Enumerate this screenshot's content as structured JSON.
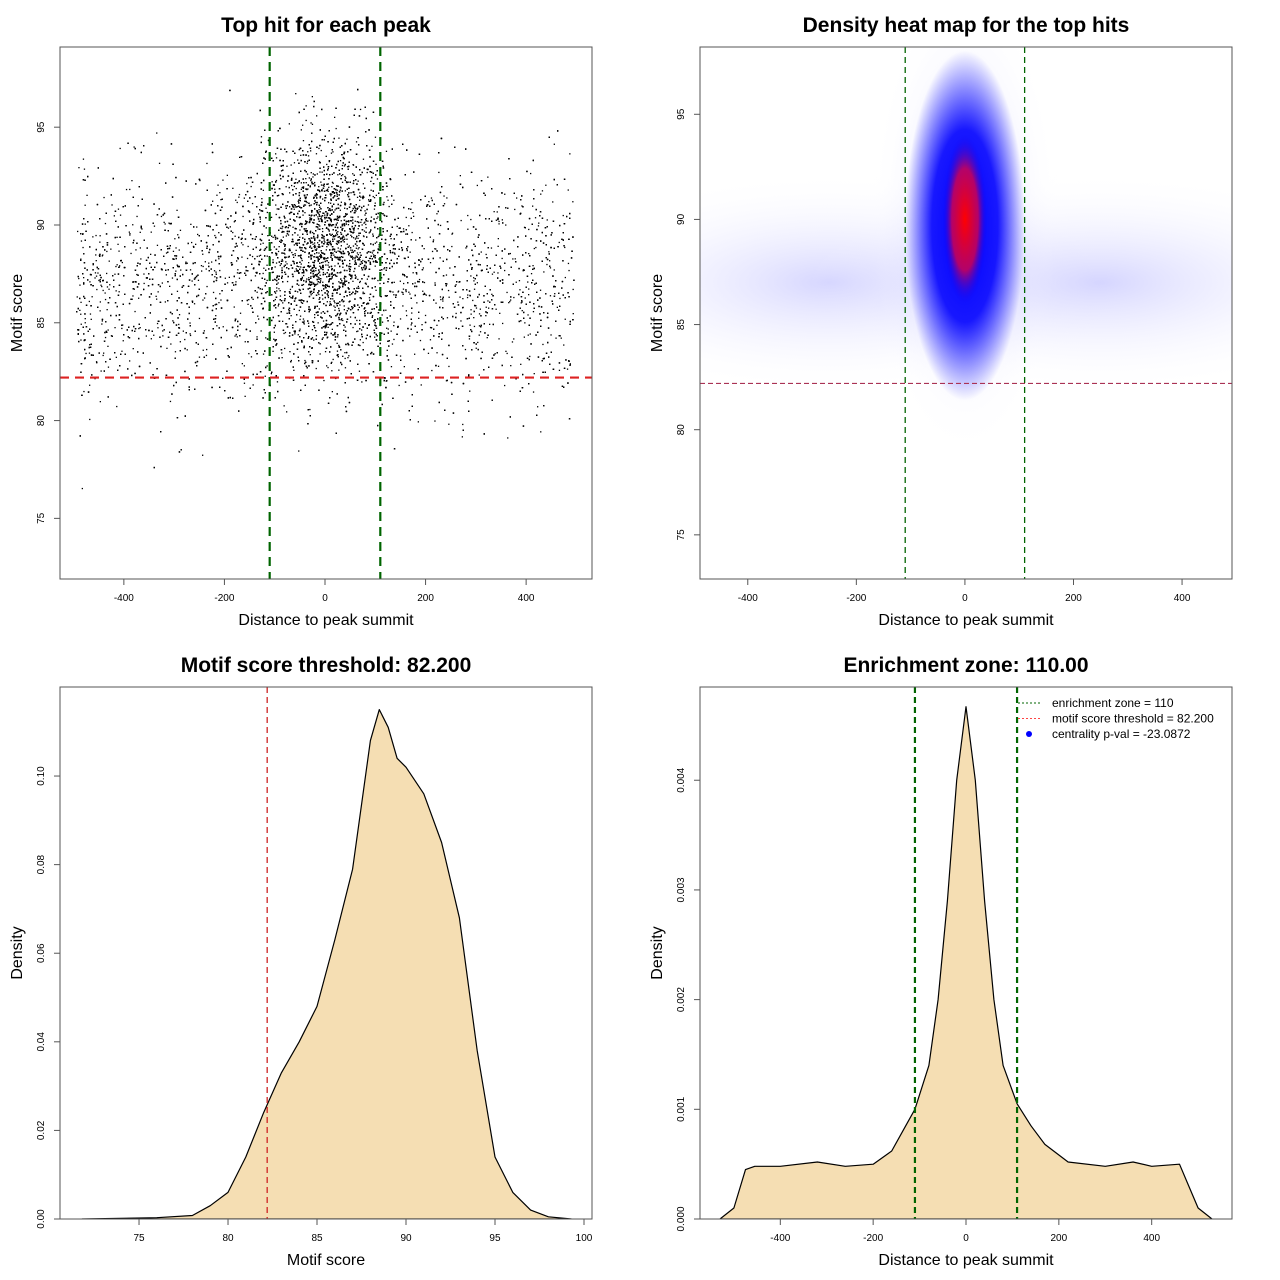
{
  "chart_data": [
    {
      "type": "scatter",
      "title": "Top hit for each peak",
      "xlabel": "Distance to peak summit",
      "ylabel": "Motif score",
      "xlim": [
        -527,
        531
      ],
      "ylim": [
        71.9,
        99.1
      ],
      "xticks": [
        "-400",
        "-200",
        "0",
        "200",
        "400"
      ],
      "yticks": [
        "75",
        "80",
        "85",
        "90",
        "95"
      ],
      "vlines": [
        -110,
        110
      ],
      "hline": 82.2,
      "vline_color": "#006400",
      "hline_color": "#dd2222",
      "point_color": "#000000"
    },
    {
      "type": "heatmap",
      "title": "Density heat map for the top hits",
      "xlabel": "Distance to peak summit",
      "ylabel": "Motif score",
      "xlim": [
        -488,
        492
      ],
      "ylim": [
        72.9,
        98.2
      ],
      "xticks": [
        "-400",
        "-200",
        "0",
        "200",
        "400"
      ],
      "yticks": [
        "75",
        "80",
        "85",
        "90",
        "95"
      ],
      "vlines": [
        -110,
        110
      ],
      "hline": 82.2,
      "peak": {
        "x": 0,
        "y": 90
      },
      "colors": [
        "#ffffff",
        "#0000ff",
        "#ff0000"
      ]
    },
    {
      "type": "area",
      "title": "Motif score threshold: 82.200",
      "xlabel": "Motif score",
      "ylabel": "Density",
      "xlim": [
        70.56,
        100.45
      ],
      "ylim": [
        0,
        0.1201
      ],
      "xticks": [
        "75",
        "80",
        "85",
        "90",
        "95",
        "100"
      ],
      "yticks": [
        "0.00",
        "0.02",
        "0.04",
        "0.06",
        "0.08",
        "0.10"
      ],
      "vline": 82.2,
      "vline_color": "#cc2222",
      "fill": "#f5deb3",
      "x": [
        71.8,
        76,
        78,
        79,
        80,
        81,
        82,
        83,
        84,
        85,
        86,
        87,
        88,
        88.5,
        89,
        89.5,
        90,
        91,
        92,
        93,
        94,
        95,
        96,
        97,
        98,
        99.3
      ],
      "y": [
        0,
        0.0003,
        0.0008,
        0.003,
        0.006,
        0.014,
        0.024,
        0.033,
        0.04,
        0.048,
        0.063,
        0.079,
        0.108,
        0.115,
        0.111,
        0.104,
        0.102,
        0.096,
        0.085,
        0.068,
        0.038,
        0.014,
        0.006,
        0.002,
        0.0005,
        0
      ]
    },
    {
      "type": "area",
      "title": "Enrichment zone: 110.00",
      "xlabel": "Distance to peak summit",
      "ylabel": "Density",
      "xlim": [
        -573,
        573
      ],
      "ylim": [
        0,
        0.00485
      ],
      "xticks": [
        "-400",
        "-200",
        "0",
        "200",
        "400"
      ],
      "yticks": [
        "0.000",
        "0.001",
        "0.002",
        "0.003",
        "0.004"
      ],
      "vlines": [
        -110,
        110
      ],
      "vline_color": "#006400",
      "fill": "#f5deb3",
      "x": [
        -530,
        -500,
        -475,
        -455,
        -400,
        -320,
        -260,
        -200,
        -160,
        -130,
        -110,
        -80,
        -60,
        -40,
        -20,
        0,
        20,
        40,
        60,
        80,
        110,
        140,
        170,
        220,
        300,
        360,
        400,
        460,
        480,
        500,
        530
      ],
      "y": [
        0,
        0.0001,
        0.00045,
        0.00048,
        0.00048,
        0.00052,
        0.00048,
        0.0005,
        0.00062,
        0.00085,
        0.001,
        0.0014,
        0.002,
        0.0029,
        0.004,
        0.00467,
        0.004,
        0.0029,
        0.002,
        0.0014,
        0.00105,
        0.00085,
        0.00068,
        0.00052,
        0.00048,
        0.00052,
        0.00048,
        0.0005,
        0.0003,
        0.0001,
        0
      ],
      "legend": [
        {
          "label": "enrichment zone = 110",
          "color": "#006400",
          "style": "dotted"
        },
        {
          "label": "motif score threshold = 82.200",
          "color": "#ff4444",
          "style": "dotted"
        },
        {
          "label": "centrality p-val = -23.0872",
          "color": "#0000ff",
          "style": "point"
        }
      ],
      "legend_position": "top-right"
    }
  ]
}
